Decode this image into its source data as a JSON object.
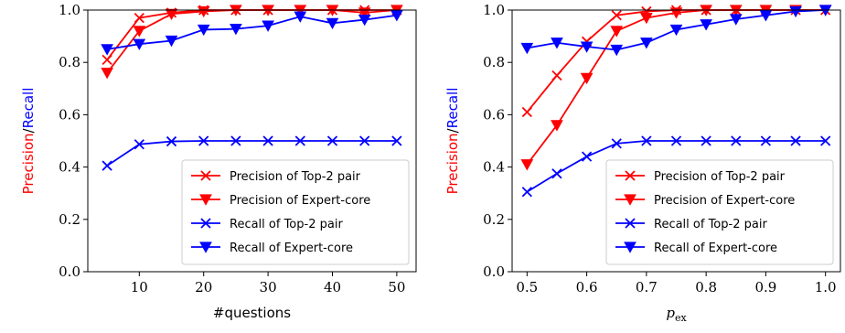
{
  "chart_data": [
    {
      "type": "line",
      "xlabel": "#questions",
      "ylabel_parts": [
        "Precision",
        "/",
        "Recall"
      ],
      "ylabel_colors": [
        "#ff0000",
        "#000000",
        "#0000ff"
      ],
      "xlim": [
        2,
        53
      ],
      "ylim": [
        0.0,
        1.0
      ],
      "xticks": [
        10,
        20,
        30,
        40,
        50
      ],
      "yticks": [
        "0.0",
        "0.2",
        "0.4",
        "0.6",
        "0.8",
        "1.0"
      ],
      "x": [
        5,
        10,
        15,
        20,
        25,
        30,
        35,
        40,
        45,
        50
      ],
      "legend_position": "lower-right",
      "series": [
        {
          "name": "Precision of Top-2 pair",
          "color": "#ff0000",
          "marker": "x",
          "values": [
            0.81,
            0.97,
            0.99,
            1.0,
            1.0,
            1.0,
            1.0,
            1.0,
            1.0,
            1.0
          ]
        },
        {
          "name": "Precision of Expert-core",
          "color": "#ff0000",
          "marker": "v",
          "values": [
            0.76,
            0.92,
            0.985,
            0.995,
            1.0,
            1.0,
            1.0,
            1.0,
            0.99,
            1.0
          ]
        },
        {
          "name": "Recall of Top-2 pair",
          "color": "#0000ff",
          "marker": "x",
          "values": [
            0.405,
            0.487,
            0.498,
            0.5,
            0.5,
            0.5,
            0.5,
            0.5,
            0.5,
            0.5
          ]
        },
        {
          "name": "Recall of Expert-core",
          "color": "#0000ff",
          "marker": "v",
          "values": [
            0.85,
            0.87,
            0.883,
            0.925,
            0.928,
            0.94,
            0.975,
            0.95,
            0.963,
            0.98
          ]
        }
      ]
    },
    {
      "type": "line",
      "xlabel": "p_ex",
      "xlabel_main": "p",
      "xlabel_sub": "ex",
      "ylabel_parts": [
        "Precision",
        "/",
        "Recall"
      ],
      "ylabel_colors": [
        "#ff0000",
        "#000000",
        "#0000ff"
      ],
      "xlim": [
        0.475,
        1.025
      ],
      "ylim": [
        0.0,
        1.0
      ],
      "xticks": [
        "0.5",
        "0.6",
        "0.7",
        "0.8",
        "0.9",
        "1.0"
      ],
      "yticks": [
        "0.0",
        "0.2",
        "0.4",
        "0.6",
        "0.8",
        "1.0"
      ],
      "x": [
        0.5,
        0.55,
        0.6,
        0.65,
        0.7,
        0.75,
        0.8,
        0.85,
        0.9,
        0.95,
        1.0
      ],
      "legend_position": "lower-right",
      "series": [
        {
          "name": "Precision of Top-2 pair",
          "color": "#ff0000",
          "marker": "x",
          "values": [
            0.61,
            0.75,
            0.88,
            0.98,
            0.995,
            1.0,
            1.0,
            1.0,
            1.0,
            1.0,
            1.0
          ]
        },
        {
          "name": "Precision of Expert-core",
          "color": "#ff0000",
          "marker": "v",
          "values": [
            0.41,
            0.56,
            0.74,
            0.92,
            0.97,
            0.99,
            1.0,
            1.0,
            1.0,
            1.0,
            1.0
          ]
        },
        {
          "name": "Recall of Top-2 pair",
          "color": "#0000ff",
          "marker": "x",
          "values": [
            0.305,
            0.375,
            0.44,
            0.49,
            0.5,
            0.5,
            0.5,
            0.5,
            0.5,
            0.5,
            0.5
          ]
        },
        {
          "name": "Recall of Expert-core",
          "color": "#0000ff",
          "marker": "v",
          "values": [
            0.855,
            0.875,
            0.86,
            0.848,
            0.875,
            0.925,
            0.945,
            0.965,
            0.98,
            0.995,
            1.0
          ]
        }
      ]
    }
  ]
}
